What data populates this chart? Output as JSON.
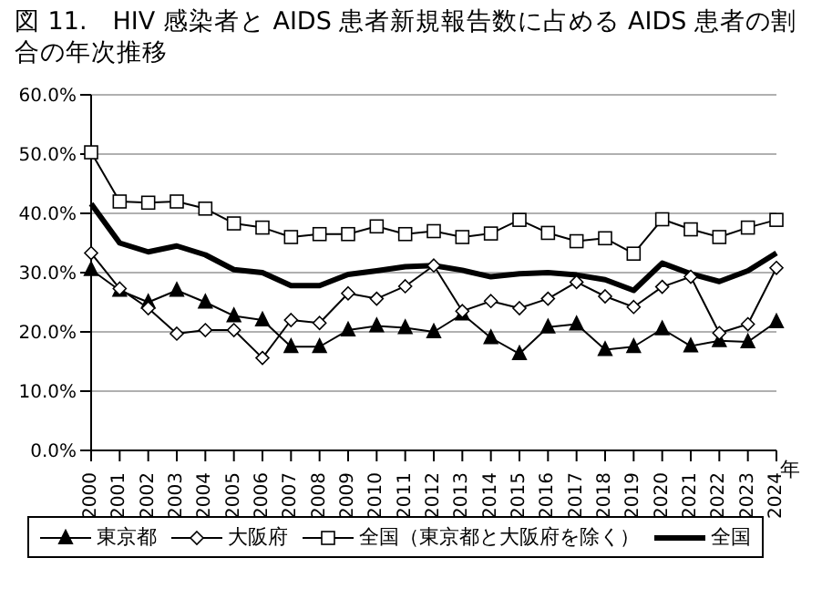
{
  "chart_data": {
    "type": "line",
    "title": "図 11.　HIV 感染者と AIDS 患者新規報告数に占める AIDS 患者の割合の年次推移",
    "xlabel": "年",
    "categories": [
      "2000",
      "2001",
      "2002",
      "2003",
      "2004",
      "2005",
      "2006",
      "2007",
      "2008",
      "2009",
      "2010",
      "2011",
      "2012",
      "2013",
      "2014",
      "2015",
      "2016",
      "2017",
      "2018",
      "2019",
      "2020",
      "2021",
      "2022",
      "2023",
      "2024"
    ],
    "series": [
      {
        "name": "東京都",
        "color": "#000000",
        "marker": "triangle",
        "values": [
          30.5,
          27,
          25,
          27,
          25,
          22.7,
          22,
          17.5,
          17.5,
          20.3,
          21,
          20.7,
          20,
          23,
          19,
          16.3,
          20.8,
          21.3,
          17,
          17.5,
          20.5,
          17.6,
          18.5,
          18.3,
          21.7
        ]
      },
      {
        "name": "大阪府",
        "color": "#000000",
        "marker": "diamond",
        "values": [
          33.3,
          27.3,
          24,
          19.7,
          20.3,
          20.3,
          15.6,
          22,
          21.5,
          26.5,
          25.6,
          27.7,
          31.2,
          23.5,
          25.2,
          24,
          25.6,
          28.4,
          26,
          24.2,
          27.6,
          29.3,
          19.8,
          21.3,
          30.8
        ]
      },
      {
        "name": "全国（東京都と大阪府を除く）",
        "color": "#000000",
        "marker": "square",
        "values": [
          50.3,
          42,
          41.8,
          42,
          40.8,
          38.3,
          37.6,
          36,
          36.5,
          36.5,
          37.8,
          36.5,
          37,
          36,
          36.6,
          38.9,
          36.7,
          35.3,
          35.8,
          33.2,
          39,
          37.3,
          36,
          37.6,
          38.9
        ]
      },
      {
        "name": "全国",
        "color": "#000000",
        "marker": "none",
        "values": [
          41.6,
          35,
          33.5,
          34.5,
          33,
          30.5,
          30,
          27.8,
          27.8,
          29.7,
          30.3,
          31,
          31.2,
          30.4,
          29.3,
          29.8,
          30,
          29.6,
          28.8,
          27,
          31.6,
          29.8,
          28.5,
          30.3,
          33.3
        ]
      }
    ],
    "ylim": [
      0,
      60
    ],
    "yticks": [
      {
        "value": 0,
        "label": "0.0%"
      },
      {
        "value": 10,
        "label": "10.0%"
      },
      {
        "value": 20,
        "label": "20.0%"
      },
      {
        "value": 30,
        "label": "30.0%"
      },
      {
        "value": 40,
        "label": "40.0%"
      },
      {
        "value": 50,
        "label": "50.0%"
      },
      {
        "value": 60,
        "label": "60.0%"
      }
    ],
    "grid": "y",
    "legend": "bottom"
  }
}
